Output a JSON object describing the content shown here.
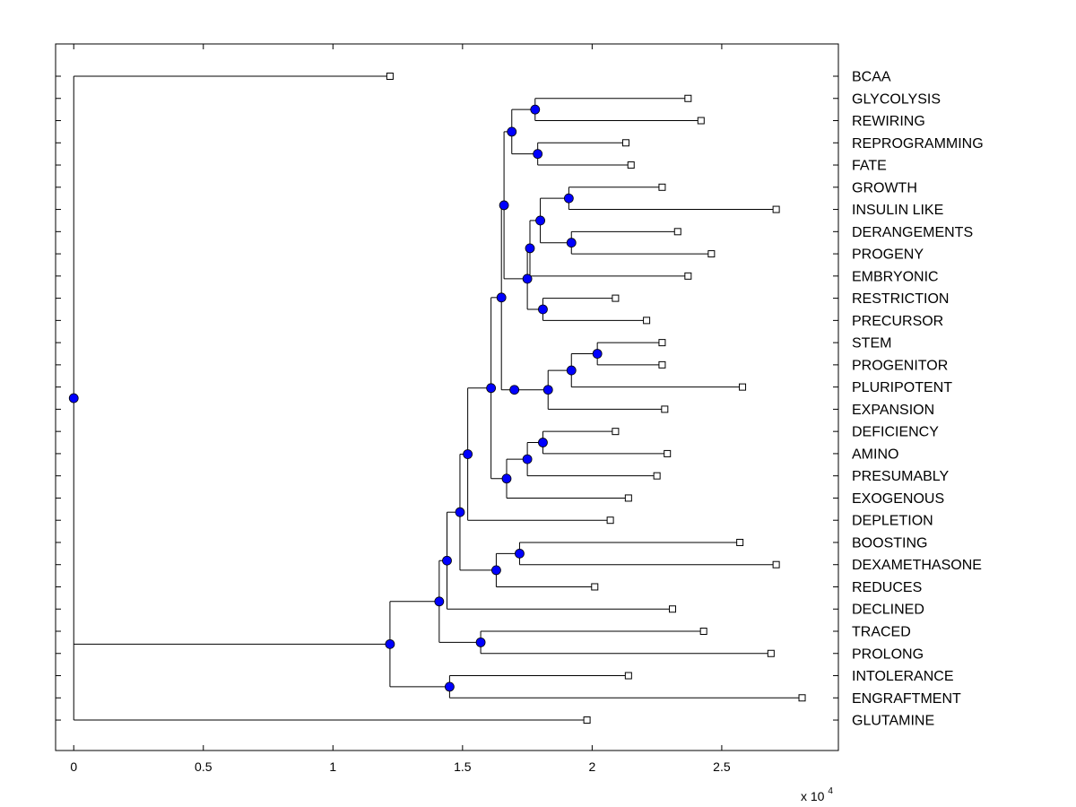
{
  "chart_data": {
    "type": "dendrogram",
    "x_multiplier_label": "x 10",
    "x_multiplier_exponent": "4",
    "xlim": [
      -0.07,
      2.95
    ],
    "xticks": [
      0,
      0.5,
      1,
      1.5,
      2,
      2.5
    ],
    "xtick_labels": [
      "0",
      "0.5",
      "1",
      "1.5",
      "2",
      "2.5"
    ],
    "root_x": 0,
    "leaves": [
      {
        "label": "BCAA",
        "x": 1.22
      },
      {
        "label": "GLYCOLYSIS",
        "x": 2.37
      },
      {
        "label": "REWIRING",
        "x": 2.42
      },
      {
        "label": "REPROGRAMMING",
        "x": 2.13
      },
      {
        "label": "FATE",
        "x": 2.15
      },
      {
        "label": "GROWTH",
        "x": 2.27
      },
      {
        "label": "INSULIN LIKE",
        "x": 2.71
      },
      {
        "label": "DERANGEMENTS",
        "x": 2.33
      },
      {
        "label": "PROGENY",
        "x": 2.46
      },
      {
        "label": "EMBRYONIC",
        "x": 2.37
      },
      {
        "label": "RESTRICTION",
        "x": 2.09
      },
      {
        "label": "PRECURSOR",
        "x": 2.21
      },
      {
        "label": "STEM",
        "x": 2.27
      },
      {
        "label": "PROGENITOR",
        "x": 2.27
      },
      {
        "label": "PLURIPOTENT",
        "x": 2.58
      },
      {
        "label": "EXPANSION",
        "x": 2.28
      },
      {
        "label": "DEFICIENCY",
        "x": 2.09
      },
      {
        "label": "AMINO",
        "x": 2.29
      },
      {
        "label": "PRESUMABLY",
        "x": 2.25
      },
      {
        "label": "EXOGENOUS",
        "x": 2.14
      },
      {
        "label": "DEPLETION",
        "x": 2.07
      },
      {
        "label": "BOOSTING",
        "x": 2.57
      },
      {
        "label": "DEXAMETHASONE",
        "x": 2.71
      },
      {
        "label": "REDUCES",
        "x": 2.01
      },
      {
        "label": "DECLINED",
        "x": 2.31
      },
      {
        "label": "TRACED",
        "x": 2.43
      },
      {
        "label": "PROLONG",
        "x": 2.69
      },
      {
        "label": "INTOLERANCE",
        "x": 2.14
      },
      {
        "label": "ENGRAFTMENT",
        "x": 2.81
      },
      {
        "label": "GLUTAMINE",
        "x": 1.98
      }
    ],
    "tree": {
      "x": 0,
      "c": [
        {
          "leaf": 0
        },
        {
          "x": 1.22,
          "c": [
            {
              "x": 1.41,
              "c": [
                {
                  "x": 1.44,
                  "c": [
                    {
                      "x": 1.49,
                      "c": [
                        {
                          "x": 1.52,
                          "c": [
                            {
                              "x": 1.61,
                              "c": [
                                {
                                  "x": 1.65,
                                  "c": [
                                    {
                                      "x": 1.66,
                                      "c": [
                                        {
                                          "x": 1.69,
                                          "c": [
                                            {
                                              "x": 1.78,
                                              "c": [
                                                {
                                                  "leaf": 1
                                                },
                                                {
                                                  "leaf": 2
                                                }
                                              ]
                                            },
                                            {
                                              "x": 1.79,
                                              "c": [
                                                {
                                                  "leaf": 3
                                                },
                                                {
                                                  "leaf": 4
                                                }
                                              ]
                                            }
                                          ]
                                        },
                                        {
                                          "x": 1.75,
                                          "c": [
                                            {
                                              "x": 1.76,
                                              "c": [
                                                {
                                                  "x": 1.8,
                                                  "c": [
                                                    {
                                                      "x": 1.91,
                                                      "c": [
                                                        {
                                                          "leaf": 5
                                                        },
                                                        {
                                                          "leaf": 6
                                                        }
                                                      ]
                                                    },
                                                    {
                                                      "x": 1.92,
                                                      "c": [
                                                        {
                                                          "leaf": 7
                                                        },
                                                        {
                                                          "leaf": 8
                                                        }
                                                      ]
                                                    }
                                                  ]
                                                },
                                                {
                                                  "leaf": 9
                                                }
                                              ]
                                            },
                                            {
                                              "x": 1.81,
                                              "c": [
                                                {
                                                  "leaf": 10
                                                },
                                                {
                                                  "leaf": 11
                                                }
                                              ]
                                            }
                                          ]
                                        }
                                      ]
                                    },
                                    {
                                      "x": 1.7,
                                      "c": [
                                        {
                                          "x": 1.83,
                                          "c": [
                                            {
                                              "x": 1.92,
                                              "c": [
                                                {
                                                  "x": 2.02,
                                                  "c": [
                                                    {
                                                      "leaf": 12
                                                    },
                                                    {
                                                      "leaf": 13
                                                    }
                                                  ]
                                                },
                                                {
                                                  "leaf": 14
                                                }
                                              ]
                                            },
                                            {
                                              "leaf": 15
                                            }
                                          ]
                                        }
                                      ]
                                    }
                                  ]
                                },
                                {
                                  "x": 1.67,
                                  "c": [
                                    {
                                      "x": 1.75,
                                      "c": [
                                        {
                                          "x": 1.81,
                                          "c": [
                                            {
                                              "leaf": 16
                                            },
                                            {
                                              "leaf": 17
                                            }
                                          ]
                                        },
                                        {
                                          "leaf": 18
                                        }
                                      ]
                                    },
                                    {
                                      "leaf": 19
                                    }
                                  ]
                                }
                              ]
                            },
                            {
                              "leaf": 20
                            }
                          ]
                        },
                        {
                          "x": 1.63,
                          "c": [
                            {
                              "x": 1.72,
                              "c": [
                                {
                                  "leaf": 21
                                },
                                {
                                  "leaf": 22
                                }
                              ]
                            },
                            {
                              "leaf": 23
                            }
                          ]
                        }
                      ]
                    },
                    {
                      "leaf": 24
                    }
                  ]
                },
                {
                  "x": 1.57,
                  "c": [
                    {
                      "leaf": 25
                    },
                    {
                      "leaf": 26
                    }
                  ]
                }
              ]
            },
            {
              "x": 1.45,
              "c": [
                {
                  "leaf": 27
                },
                {
                  "leaf": 28
                }
              ]
            }
          ]
        },
        {
          "leaf": 29
        }
      ]
    }
  }
}
